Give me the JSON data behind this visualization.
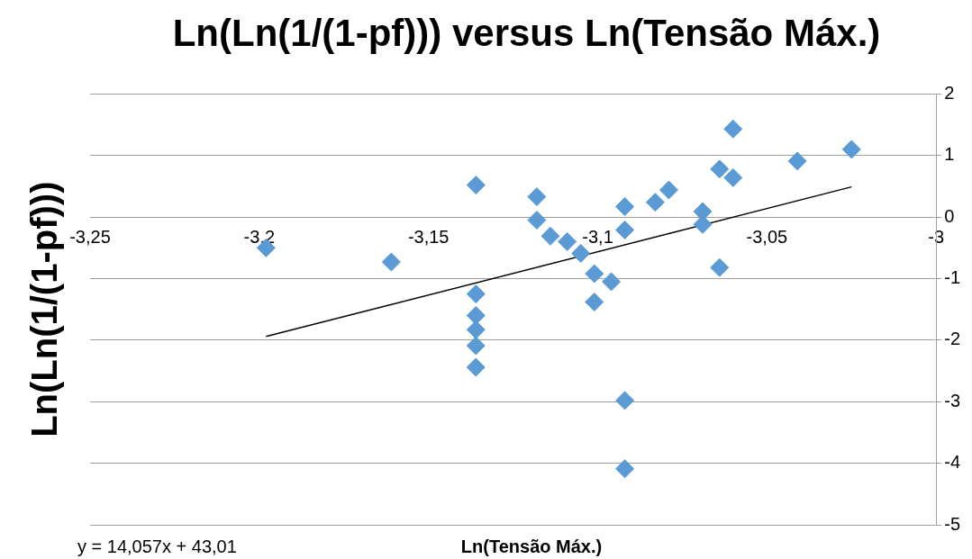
{
  "chart_data": {
    "type": "scatter",
    "title": "Ln(Ln(1/(1-pf))) versus Ln(Tensão Máx.)",
    "xlabel": "Ln(Tensão Máx.)",
    "ylabel": "Ln(Ln(1/(1-pf)))",
    "annotations": [
      "y = 14,057x + 43,01"
    ],
    "xlim": [
      -3.25,
      -3
    ],
    "xticks": [
      {
        "value": -3.25,
        "label": "-3,25"
      },
      {
        "value": -3.2,
        "label": "-3,2"
      },
      {
        "value": -3.15,
        "label": "-3,15"
      },
      {
        "value": -3.1,
        "label": "-3,1"
      },
      {
        "value": -3.05,
        "label": "-3,05"
      },
      -3
    ],
    "ylim": [
      -5,
      2
    ],
    "yticks": [
      -5,
      -4,
      -3,
      -2,
      -1,
      0,
      1,
      2
    ],
    "grid": "y",
    "legend": false,
    "marker": "diamond",
    "series": [
      {
        "color": "#5b9bd5",
        "x": [
          -3.198,
          -3.161,
          -3.136,
          -3.136,
          -3.136,
          -3.136,
          -3.136,
          -3.136,
          -3.118,
          -3.118,
          -3.114,
          -3.109,
          -3.105,
          -3.101,
          -3.101,
          -3.096,
          -3.092,
          -3.092,
          -3.092,
          -3.092,
          -3.083,
          -3.079,
          -3.069,
          -3.069,
          -3.064,
          -3.064,
          -3.06,
          -3.06,
          -3.041,
          -3.025
        ],
        "values": [
          -0.5,
          -0.73,
          0.52,
          -1.25,
          -1.6,
          -1.83,
          -2.09,
          -2.44,
          0.33,
          -0.05,
          -0.31,
          -0.4,
          -0.59,
          -0.92,
          -1.38,
          -1.05,
          0.17,
          -0.21,
          -2.98,
          -4.09,
          0.24,
          0.44,
          0.09,
          -0.12,
          0.78,
          -0.82,
          1.43,
          0.64,
          0.91,
          1.1
        ]
      },
      {
        "type": "line",
        "color": "#000000",
        "marker": "none",
        "x": [
          -3.198,
          -3.025
        ],
        "values": [
          -1.94,
          0.49
        ]
      }
    ]
  }
}
